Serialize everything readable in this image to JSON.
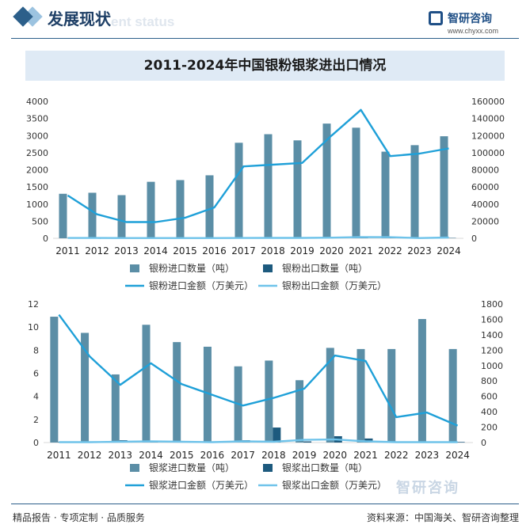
{
  "header": {
    "section_title": "发展现状",
    "section_subtitle": "ent status",
    "logo_name": "智研咨询",
    "logo_url": "www.chyxx.com"
  },
  "footer": {
    "tagline": "精品报告 · 专项定制 · 品质服务",
    "source": "资料来源：中国海关、智研咨询整理",
    "watermark": "智研咨询"
  },
  "colors": {
    "import_qty": "#5b8ea6",
    "export_qty": "#1d5a7e",
    "import_value": "#1fa0d8",
    "export_value": "#6fc3ea",
    "title_bg": "#dfeaf5"
  },
  "chart_data": [
    {
      "type": "bar",
      "title": "2011-2024年中国银粉银浆进出口情况",
      "categories": [
        "2011",
        "2012",
        "2013",
        "2014",
        "2015",
        "2016",
        "2017",
        "2018",
        "2019",
        "2020",
        "2021",
        "2022",
        "2023",
        "2024"
      ],
      "ylim_left": [
        0,
        4000
      ],
      "yticks_left": [
        0,
        500,
        1000,
        1500,
        2000,
        2500,
        3000,
        3500,
        4000
      ],
      "ylim_right": [
        0,
        160000
      ],
      "yticks_right": [
        0,
        20000,
        40000,
        60000,
        80000,
        100000,
        120000,
        140000,
        160000
      ],
      "series": [
        {
          "name": "银粉进口数量（吨）",
          "kind": "bar",
          "axis": "left",
          "color": "#5b8ea6",
          "values": [
            1300,
            1330,
            1260,
            1650,
            1700,
            1840,
            2790,
            3040,
            2860,
            3350,
            3230,
            2530,
            2720,
            2980
          ]
        },
        {
          "name": "银粉出口数量（吨）",
          "kind": "bar",
          "axis": "left",
          "color": "#1d5a7e",
          "values": [
            5,
            5,
            5,
            5,
            5,
            5,
            5,
            5,
            5,
            10,
            10,
            10,
            5,
            10
          ]
        },
        {
          "name": "银粉进口金额（万美元）",
          "kind": "line",
          "axis": "right",
          "color": "#1fa0d8",
          "values": [
            50000,
            28000,
            19000,
            19000,
            24000,
            36000,
            84000,
            86000,
            88000,
            120000,
            150000,
            96000,
            99000,
            105000
          ]
        },
        {
          "name": "银粉出口金额（万美元）",
          "kind": "line",
          "axis": "right",
          "color": "#6fc3ea",
          "values": [
            400,
            400,
            300,
            300,
            300,
            300,
            400,
            500,
            500,
            700,
            1500,
            1300,
            300,
            900
          ]
        }
      ],
      "legend": "bottom"
    },
    {
      "type": "bar",
      "title": "",
      "categories": [
        "2011",
        "2012",
        "2013",
        "2014",
        "2015",
        "2016",
        "2017",
        "2018",
        "2019",
        "2020",
        "2021",
        "2022",
        "2023",
        "2024"
      ],
      "ylim_left": [
        0,
        12
      ],
      "yticks_left": [
        0,
        2,
        4,
        6,
        8,
        10,
        12
      ],
      "ylim_right": [
        0,
        1800
      ],
      "yticks_right": [
        0,
        200,
        400,
        600,
        800,
        1000,
        1200,
        1400,
        1600,
        1800
      ],
      "series": [
        {
          "name": "银浆进口数量（吨）",
          "kind": "bar",
          "axis": "left",
          "color": "#5b8ea6",
          "values": [
            10.9,
            9.5,
            5.9,
            10.2,
            8.7,
            8.3,
            6.6,
            7.1,
            5.4,
            8.2,
            8.1,
            8.1,
            10.7,
            8.1
          ]
        },
        {
          "name": "银浆出口数量（吨）",
          "kind": "bar",
          "axis": "left",
          "color": "#1d5a7e",
          "values": [
            0.05,
            0.05,
            0.2,
            0.1,
            0.1,
            0.05,
            0.2,
            1.3,
            0.1,
            0.55,
            0.35,
            0.05,
            0.05,
            0.05
          ]
        },
        {
          "name": "银浆进口金额（万美元）",
          "kind": "line",
          "axis": "right",
          "color": "#1fa0d8",
          "values": [
            1660,
            1120,
            750,
            1030,
            760,
            620,
            480,
            580,
            700,
            1130,
            1060,
            330,
            390,
            220
          ]
        },
        {
          "name": "银浆出口金额（万美元）",
          "kind": "line",
          "axis": "right",
          "color": "#6fc3ea",
          "values": [
            5,
            5,
            10,
            15,
            10,
            5,
            15,
            10,
            35,
            40,
            15,
            5,
            5,
            5
          ]
        }
      ],
      "legend": "bottom"
    }
  ]
}
